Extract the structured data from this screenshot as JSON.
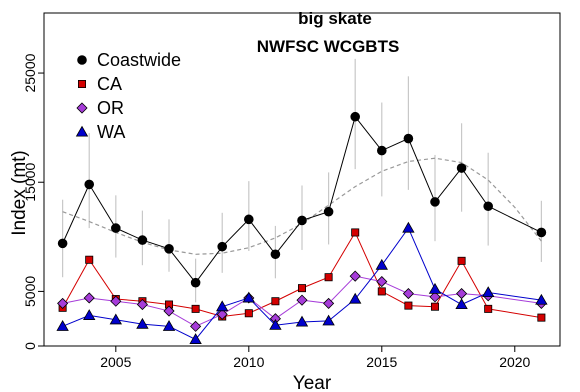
{
  "chart_data": {
    "type": "line",
    "title": "big skate",
    "subtitle": "NWFSC WCGBTS",
    "xlabel": "Year",
    "ylabel": "Index (mt)",
    "xlim": [
      2002.3,
      2021.7
    ],
    "ylim": [
      0,
      30500
    ],
    "x_ticks": [
      2005,
      2010,
      2015,
      2020
    ],
    "y_ticks": [
      0,
      5000,
      15000,
      25000
    ],
    "grid": false,
    "legend_position": "top-left",
    "x": [
      2003,
      2004,
      2005,
      2006,
      2007,
      2008,
      2009,
      2010,
      2011,
      2012,
      2013,
      2014,
      2015,
      2016,
      2017,
      2018,
      2019,
      2021
    ],
    "series": [
      {
        "name": "Coastwide",
        "color": "#000000",
        "marker": "circle",
        "x": [
          2003,
          2004,
          2005,
          2006,
          2007,
          2008,
          2009,
          2010,
          2011,
          2012,
          2013,
          2014,
          2015,
          2016,
          2017,
          2018,
          2019,
          2021
        ],
        "values": [
          9400,
          14800,
          10800,
          9700,
          8900,
          5800,
          9100,
          11600,
          8400,
          11500,
          12300,
          21000,
          17900,
          19000,
          13200,
          16300,
          12800,
          10400
        ],
        "error_low": [
          6300,
          10800,
          8100,
          7400,
          6800,
          4000,
          6700,
          8700,
          6200,
          8800,
          9300,
          16200,
          13700,
          14300,
          9600,
          12300,
          9200,
          7700
        ],
        "error_high": [
          13400,
          19500,
          13800,
          12400,
          11600,
          8000,
          12200,
          15100,
          11000,
          14700,
          15900,
          26300,
          22300,
          24700,
          17500,
          20400,
          17700,
          13300
        ]
      },
      {
        "name": "CA",
        "color": "#d40000",
        "marker": "square",
        "x": [
          2003,
          2004,
          2005,
          2006,
          2007,
          2008,
          2009,
          2010,
          2011,
          2012,
          2013,
          2014,
          2015,
          2016,
          2017,
          2018,
          2019,
          2021
        ],
        "values": [
          3500,
          7900,
          4300,
          4100,
          3800,
          3400,
          2700,
          3000,
          4100,
          5300,
          6300,
          10400,
          5000,
          3700,
          3600,
          7800,
          3400,
          2600
        ]
      },
      {
        "name": "OR",
        "color": "#a63cd9",
        "marker": "diamond",
        "x": [
          2003,
          2004,
          2005,
          2006,
          2007,
          2008,
          2009,
          2010,
          2011,
          2012,
          2013,
          2014,
          2015,
          2016,
          2017,
          2018,
          2019,
          2021
        ],
        "values": [
          3900,
          4400,
          4100,
          3800,
          3200,
          1800,
          2900,
          4400,
          2500,
          4200,
          3900,
          6400,
          5900,
          4800,
          4500,
          4800,
          4600,
          3900
        ]
      },
      {
        "name": "WA",
        "color": "#0000cc",
        "marker": "triangle",
        "x": [
          2003,
          2004,
          2005,
          2006,
          2007,
          2008,
          2009,
          2010,
          2011,
          2012,
          2013,
          2014,
          2015,
          2016,
          2017,
          2018,
          2019,
          2021
        ],
        "values": [
          1800,
          2800,
          2400,
          2000,
          1800,
          600,
          3600,
          4400,
          1900,
          2200,
          2300,
          4300,
          7400,
          10800,
          5200,
          3800,
          4900,
          4200
        ]
      }
    ],
    "trend": {
      "color": "#999999",
      "style": "dashed",
      "x": [
        2003,
        2004,
        2005,
        2006,
        2007,
        2008,
        2009,
        2010,
        2011,
        2012,
        2013,
        2014,
        2015,
        2016,
        2017,
        2018,
        2019,
        2020,
        2021
      ],
      "values": [
        12300,
        11400,
        10400,
        9500,
        8800,
        8400,
        8500,
        9000,
        9900,
        11200,
        12900,
        14600,
        16000,
        16900,
        17200,
        16800,
        15200,
        12700,
        9600
      ]
    }
  }
}
